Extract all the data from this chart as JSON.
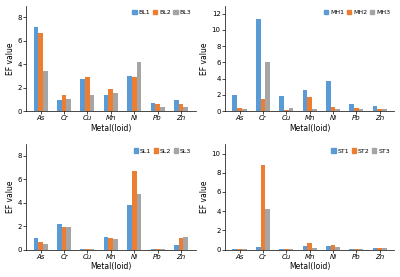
{
  "subplots": [
    {
      "legend_labels": [
        "BL1",
        "BL2",
        "BL3"
      ],
      "categories": [
        "As",
        "Cr",
        "Cu",
        "Mn",
        "Ni",
        "Pb",
        "Zn"
      ],
      "series": [
        [
          7.2,
          0.9,
          2.7,
          1.4,
          3.0,
          0.7,
          0.9
        ],
        [
          6.7,
          1.4,
          2.9,
          1.9,
          2.9,
          0.6,
          0.6
        ],
        [
          3.4,
          1.0,
          1.4,
          1.5,
          4.2,
          0.3,
          0.3
        ]
      ],
      "ylim": [
        0,
        9
      ],
      "yticks": [
        0,
        2,
        4,
        6,
        8
      ]
    },
    {
      "legend_labels": [
        "MH1",
        "MH2",
        "MH3"
      ],
      "categories": [
        "As",
        "Cr",
        "Cu",
        "Mn",
        "Ni",
        "Pb",
        "Zn"
      ],
      "series": [
        [
          2.0,
          11.3,
          1.8,
          2.6,
          3.7,
          0.9,
          0.6
        ],
        [
          0.4,
          1.5,
          0.1,
          1.7,
          0.5,
          0.4,
          0.3
        ],
        [
          0.3,
          6.0,
          0.4,
          0.2,
          0.2,
          0.3,
          0.3
        ]
      ],
      "ylim": [
        0,
        13
      ],
      "yticks": [
        0,
        2,
        4,
        6,
        8,
        10,
        12
      ]
    },
    {
      "legend_labels": [
        "SL1",
        "SL2",
        "SL3"
      ],
      "categories": [
        "As",
        "Cr",
        "Cu",
        "Mn",
        "Ni",
        "Pb",
        "Zn"
      ],
      "series": [
        [
          1.0,
          2.2,
          0.05,
          1.1,
          3.8,
          0.05,
          0.4
        ],
        [
          0.6,
          1.9,
          0.05,
          1.0,
          6.7,
          0.05,
          1.0
        ],
        [
          0.5,
          1.9,
          0.05,
          0.9,
          4.7,
          0.05,
          1.1
        ]
      ],
      "ylim": [
        0,
        9
      ],
      "yticks": [
        0,
        2,
        4,
        6,
        8
      ]
    },
    {
      "legend_labels": [
        "ST1",
        "ST2",
        "ST3"
      ],
      "categories": [
        "As",
        "Cr",
        "Cu",
        "Mn",
        "Ni",
        "Pb",
        "Zn"
      ],
      "series": [
        [
          0.05,
          0.3,
          0.05,
          0.4,
          0.4,
          0.05,
          0.15
        ],
        [
          0.05,
          8.8,
          0.05,
          0.7,
          0.5,
          0.05,
          0.2
        ],
        [
          0.05,
          4.2,
          0.05,
          0.2,
          0.3,
          0.05,
          0.2
        ]
      ],
      "ylim": [
        0,
        11
      ],
      "yticks": [
        0,
        2,
        4,
        6,
        8,
        10
      ]
    }
  ],
  "bar_colors": [
    "#5B9BD5",
    "#ED7D31",
    "#A5A5A5"
  ],
  "ylabel": "EF value",
  "xlabel": "Metal(loid)"
}
